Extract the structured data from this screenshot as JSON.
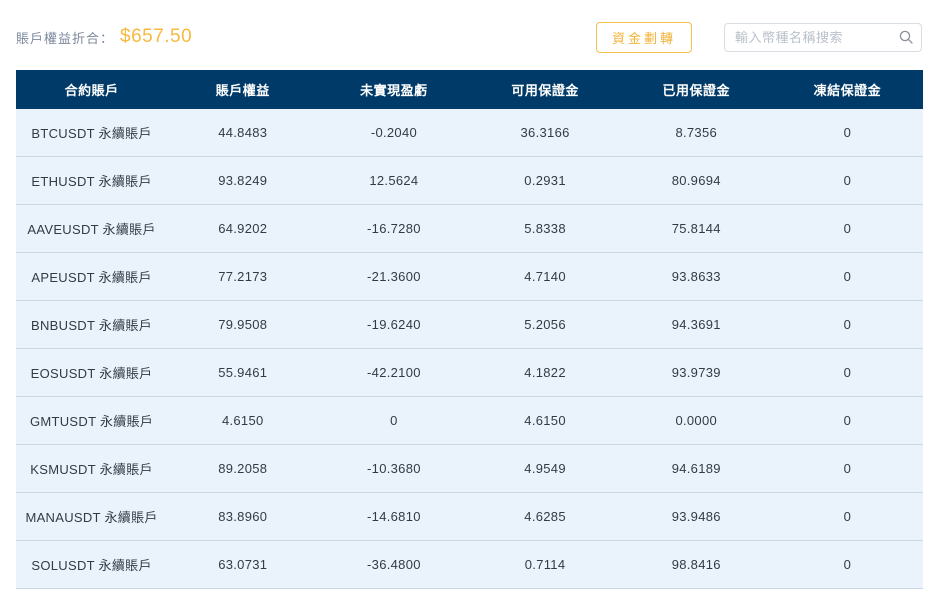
{
  "header": {
    "equity_label": "賬戶權益折合：",
    "equity_value": "$657.50",
    "transfer_button_label": "資金劃轉",
    "search_placeholder": "輸入幣種名稱搜索",
    "search_icon": "magnifier"
  },
  "colors": {
    "accent_gold": "#f7ba3e",
    "table_header_bg": "#003a68",
    "row_bg": "#eaf3fc",
    "row_divider": "#c9d7e4"
  },
  "table": {
    "columns": [
      "合約賬戶",
      "賬戶權益",
      "未實現盈虧",
      "可用保證金",
      "已用保證金",
      "凍結保證金"
    ],
    "rows": [
      [
        "BTCUSDT 永續賬戶",
        "44.8483",
        "-0.2040",
        "36.3166",
        "8.7356",
        "0"
      ],
      [
        "ETHUSDT 永續賬戶",
        "93.8249",
        "12.5624",
        "0.2931",
        "80.9694",
        "0"
      ],
      [
        "AAVEUSDT 永續賬戶",
        "64.9202",
        "-16.7280",
        "5.8338",
        "75.8144",
        "0"
      ],
      [
        "APEUSDT 永續賬戶",
        "77.2173",
        "-21.3600",
        "4.7140",
        "93.8633",
        "0"
      ],
      [
        "BNBUSDT 永續賬戶",
        "79.9508",
        "-19.6240",
        "5.2056",
        "94.3691",
        "0"
      ],
      [
        "EOSUSDT 永續賬戶",
        "55.9461",
        "-42.2100",
        "4.1822",
        "93.9739",
        "0"
      ],
      [
        "GMTUSDT 永續賬戶",
        "4.6150",
        "0",
        "4.6150",
        "0.0000",
        "0"
      ],
      [
        "KSMUSDT 永續賬戶",
        "89.2058",
        "-10.3680",
        "4.9549",
        "94.6189",
        "0"
      ],
      [
        "MANAUSDT 永續賬戶",
        "83.8960",
        "-14.6810",
        "4.6285",
        "93.9486",
        "0"
      ],
      [
        "SOLUSDT 永續賬戶",
        "63.0731",
        "-36.4800",
        "0.7114",
        "98.8416",
        "0"
      ]
    ]
  }
}
